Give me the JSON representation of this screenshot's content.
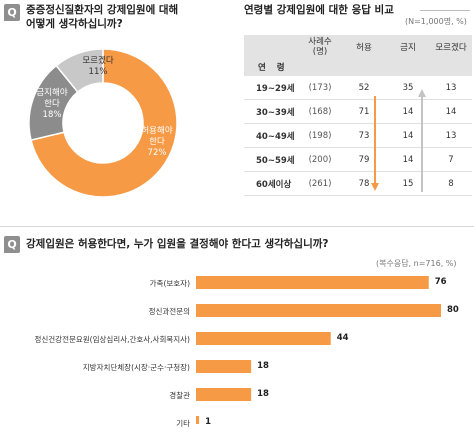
{
  "q1": {
    "badge": "Q",
    "line1": "중증정신질환자의 강제입원에 대해",
    "line2": "어떻게 생각하십니까?"
  },
  "q2": {
    "title": "연령별 강제입원에 대한 응답 비교",
    "note": "(N=1,000명, %)"
  },
  "q3": {
    "badge": "Q",
    "title": "강제입원은 허용한다면, 누가 입원을 결정해야 한다고 생각하십니까?",
    "note": "(복수응답, n=716, %)"
  },
  "colors": {
    "orange": "#f79a45",
    "gray_dark": "#8c8c8c",
    "gray_light": "#c8c8c8",
    "arrow_gray": "#c4c4c4"
  },
  "chart_data": [
    {
      "type": "pie",
      "title": "",
      "slices": [
        {
          "label_line1": "허용해야",
          "label_line2": "한다",
          "value": 72,
          "value_text": "72%"
        },
        {
          "label_line1": "금지해야",
          "label_line2": "한다",
          "value": 18,
          "value_text": "18%"
        },
        {
          "label_line1": "모르겠다",
          "label_line2": "",
          "value": 11,
          "value_text": "11%"
        }
      ]
    },
    {
      "type": "table",
      "columns": [
        "사례수",
        "(명)",
        "허용",
        "금지",
        "모르겠다"
      ],
      "row_header": "연 령",
      "rows": [
        {
          "age": "19~29세",
          "n": "(173)",
          "allow": 52,
          "forbid": 35,
          "dunno": 13
        },
        {
          "age": "30~39세",
          "n": "(168)",
          "allow": 71,
          "forbid": 14,
          "dunno": 14
        },
        {
          "age": "40~49세",
          "n": "(198)",
          "allow": 73,
          "forbid": 14,
          "dunno": 13
        },
        {
          "age": "50~59세",
          "n": "(200)",
          "allow": 79,
          "forbid": 14,
          "dunno": 7
        },
        {
          "age": "60세이상",
          "n": "(261)",
          "allow": 78,
          "forbid": 15,
          "dunno": 8
        }
      ]
    },
    {
      "type": "bar",
      "orientation": "horizontal",
      "categories": [
        "가족(보호자)",
        "정신과전문의",
        "정신건강전문요원(임상심리사,간호사,사회복지사)",
        "지방자치단체장(시장·군수·구청장)",
        "경찰관",
        "기타"
      ],
      "values": [
        76,
        80,
        44,
        18,
        18,
        1
      ],
      "xlim": [
        0,
        80
      ]
    }
  ]
}
